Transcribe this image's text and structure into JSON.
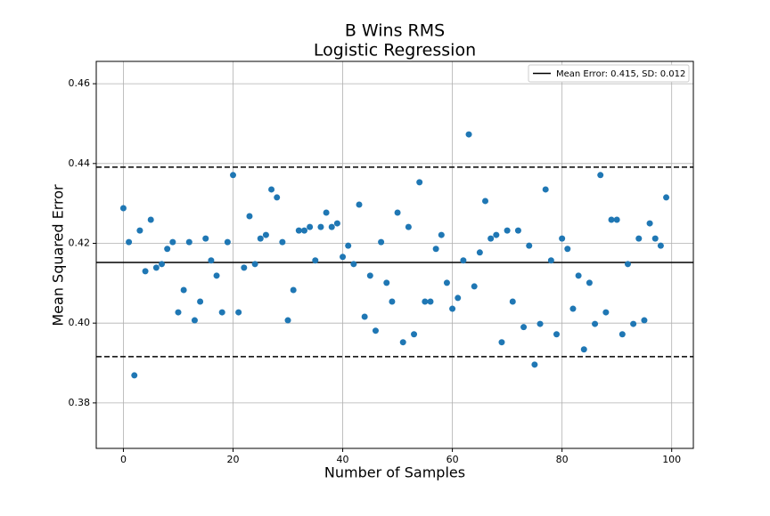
{
  "chart_data": {
    "type": "scatter",
    "title": [
      "B Wins RMS",
      "Logistic Regression"
    ],
    "x_label": "Number of Samples",
    "y_label": "Mean Squared Error",
    "x": [
      0,
      1,
      2,
      3,
      4,
      5,
      6,
      7,
      8,
      9,
      10,
      11,
      12,
      13,
      14,
      15,
      16,
      17,
      18,
      19,
      20,
      21,
      22,
      23,
      24,
      25,
      26,
      27,
      28,
      29,
      30,
      31,
      32,
      33,
      34,
      35,
      36,
      37,
      38,
      39,
      40,
      41,
      42,
      43,
      44,
      45,
      46,
      47,
      48,
      49,
      50,
      51,
      52,
      53,
      54,
      55,
      56,
      57,
      58,
      59,
      60,
      61,
      62,
      63,
      64,
      65,
      66,
      67,
      68,
      69,
      70,
      71,
      72,
      73,
      74,
      75,
      76,
      77,
      78,
      79,
      80,
      81,
      82,
      83,
      84,
      85,
      86,
      87,
      88,
      89,
      90,
      91,
      92,
      93,
      94,
      95,
      96,
      97,
      98,
      99
    ],
    "values": [
      0.4288,
      0.4203,
      0.3869,
      0.4232,
      0.413,
      0.4259,
      0.4139,
      0.4148,
      0.4186,
      0.4203,
      0.4027,
      0.4083,
      0.4203,
      0.4007,
      0.4054,
      0.4212,
      0.4157,
      0.4119,
      0.4027,
      0.4203,
      0.4371,
      0.4027,
      0.4139,
      0.4268,
      0.4148,
      0.4212,
      0.4221,
      0.4335,
      0.4315,
      0.4203,
      0.4007,
      0.4083,
      0.4232,
      0.4232,
      0.4241,
      0.4157,
      0.4241,
      0.4277,
      0.4241,
      0.425,
      0.4166,
      0.4194,
      0.4148,
      0.4297,
      0.4016,
      0.4119,
      0.3981,
      0.4203,
      0.4101,
      0.4054,
      0.4277,
      0.3952,
      0.4241,
      0.3972,
      0.4353,
      0.4054,
      0.4054,
      0.4186,
      0.4221,
      0.4101,
      0.4036,
      0.4063,
      0.4157,
      0.4473,
      0.4092,
      0.4177,
      0.4306,
      0.4212,
      0.4221,
      0.3952,
      0.4232,
      0.4054,
      0.4232,
      0.399,
      0.4194,
      0.3896,
      0.3998,
      0.4335,
      0.4157,
      0.3972,
      0.4212,
      0.4186,
      0.4036,
      0.4119,
      0.3934,
      0.4101,
      0.3998,
      0.4371,
      0.4027,
      0.4259,
      0.4259,
      0.3972,
      0.4148,
      0.3998,
      0.4212,
      0.4007,
      0.425,
      0.4212,
      0.4194,
      0.4315
    ],
    "color": "#1f77b4",
    "mean_line": {
      "label": "Mean Error: 0.415, SD: 0.012",
      "value": 0.4152
    },
    "bounds": [
      0.4391,
      0.3916
    ],
    "xlim": [
      -4.95,
      103.95
    ],
    "ylim": [
      0.3686,
      0.4656
    ],
    "xticks": [
      0,
      20,
      40,
      60,
      80,
      100
    ],
    "yticks": [
      0.38,
      {
        "value": 0.4,
        "label": "0.40"
      },
      0.42,
      0.44,
      0.46
    ],
    "grid": true
  }
}
